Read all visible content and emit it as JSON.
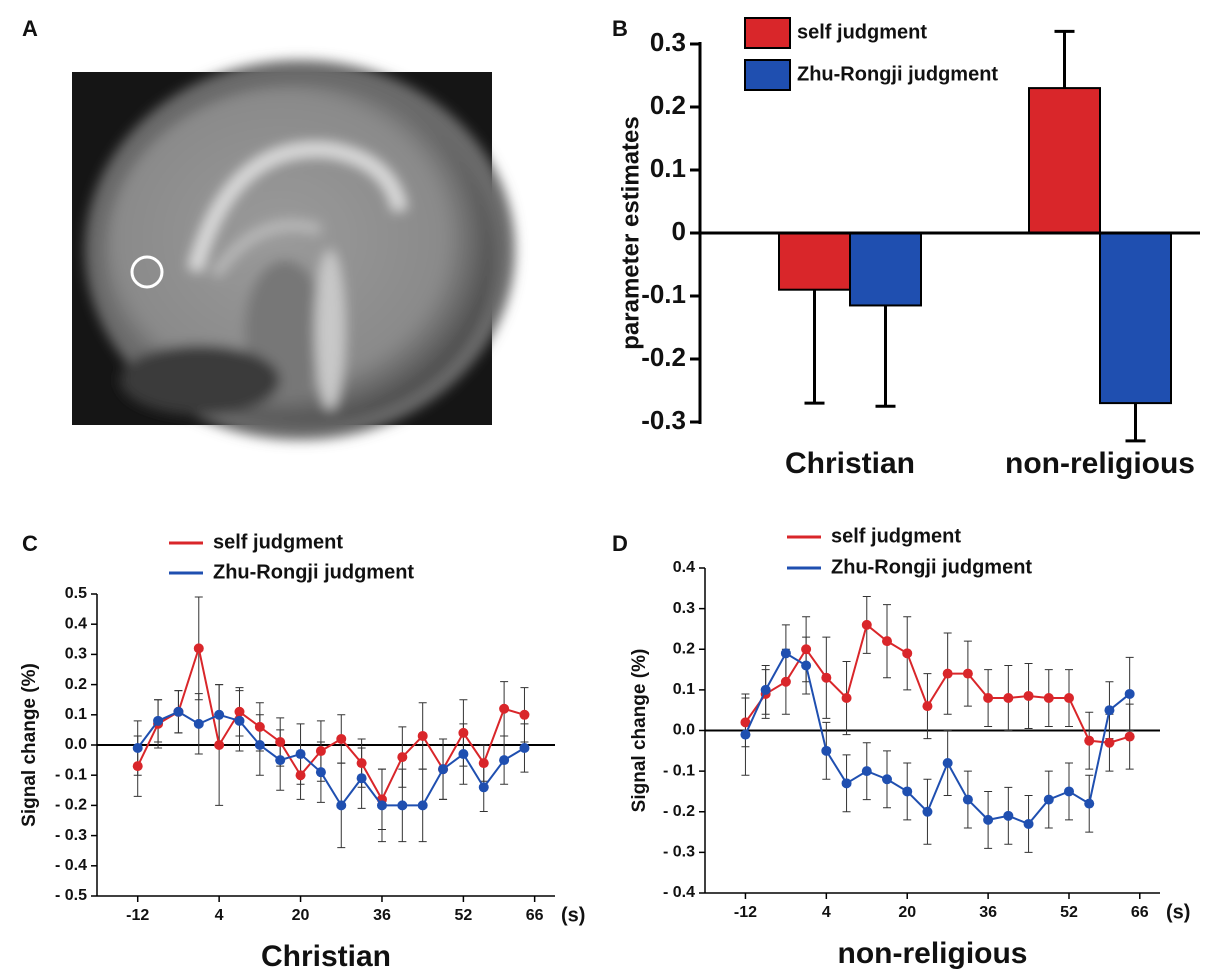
{
  "panel_labels": [
    "A",
    "B",
    "C",
    "D"
  ],
  "chart_data": [
    {
      "type": "bar",
      "ylabel": "parameter estimates",
      "categories": [
        "Christian",
        "non-religious"
      ],
      "series": [
        {
          "name": "self judgment",
          "color": "#d9262a",
          "values": [
            -0.09,
            0.23
          ],
          "errors": [
            0.18,
            0.09
          ]
        },
        {
          "name": "Zhu-Rongji judgment",
          "color": "#1f4fb0",
          "values": [
            -0.115,
            -0.27
          ],
          "errors": [
            0.16,
            0.06
          ]
        }
      ],
      "ylim": [
        -0.3,
        0.3
      ],
      "yticks": [
        0.3,
        0.2,
        0.1,
        0,
        -0.1,
        -0.2,
        -0.3
      ]
    },
    {
      "type": "line",
      "ylabel": "Signal change (%)",
      "xlabel": "Christian",
      "xunit": "(s)",
      "x": [
        -12,
        -8,
        -4,
        0,
        4,
        8,
        12,
        16,
        20,
        24,
        28,
        32,
        36,
        40,
        44,
        48,
        52,
        56,
        60,
        64
      ],
      "series": [
        {
          "name": "self judgment",
          "color": "#d9262a",
          "values": [
            -0.07,
            0.07,
            0.11,
            0.32,
            0.0,
            0.11,
            0.06,
            0.01,
            -0.1,
            -0.02,
            0.02,
            -0.06,
            -0.18,
            -0.04,
            0.03,
            -0.08,
            0.04,
            -0.06,
            0.12,
            0.1
          ],
          "errors": [
            0.1,
            0.08,
            0.07,
            0.17,
            0.2,
            0.08,
            0.08,
            0.08,
            0.08,
            0.1,
            0.08,
            0.08,
            0.1,
            0.1,
            0.11,
            0.1,
            0.11,
            0.06,
            0.09,
            0.09
          ]
        },
        {
          "name": "Zhu-Rongji judgment",
          "color": "#1f4fb0",
          "values": [
            -0.01,
            0.08,
            0.11,
            0.07,
            0.1,
            0.08,
            0.0,
            -0.05,
            -0.03,
            -0.09,
            -0.2,
            -0.11,
            -0.2,
            -0.2,
            -0.2,
            -0.08,
            -0.03,
            -0.14,
            -0.05,
            -0.01
          ],
          "errors": [
            0.09,
            0.07,
            0.07,
            0.1,
            0.1,
            0.1,
            0.1,
            0.1,
            0.1,
            0.1,
            0.14,
            0.1,
            0.12,
            0.12,
            0.12,
            0.1,
            0.1,
            0.08,
            0.08,
            0.08
          ]
        }
      ],
      "xlim": [
        -20,
        70
      ],
      "xticks": [
        -12,
        4,
        20,
        36,
        52,
        66
      ],
      "ylim": [
        -0.5,
        0.5
      ],
      "yticks": [
        0.5,
        0.4,
        0.3,
        0.2,
        0.1,
        {
          "value": 0,
          "label": "0.0"
        },
        {
          "value": -0.1,
          "label": "- 0.1"
        },
        {
          "value": -0.2,
          "label": "- 0.2"
        },
        {
          "value": -0.3,
          "label": "- 0.3"
        },
        {
          "value": -0.4,
          "label": "- 0.4"
        },
        {
          "value": -0.5,
          "label": "- 0.5"
        }
      ]
    },
    {
      "type": "line",
      "ylabel": "Signal change (%)",
      "xlabel": "non-religious",
      "xunit": "(s)",
      "x": [
        -12,
        -8,
        -4,
        0,
        4,
        8,
        12,
        16,
        20,
        24,
        28,
        32,
        36,
        40,
        44,
        48,
        52,
        56,
        60,
        64
      ],
      "series": [
        {
          "name": "self judgment",
          "color": "#d9262a",
          "values": [
            0.02,
            0.09,
            0.12,
            0.2,
            0.13,
            0.08,
            0.26,
            0.22,
            0.19,
            0.06,
            0.14,
            0.14,
            0.08,
            0.08,
            0.085,
            0.08,
            0.08,
            -0.025,
            -0.03,
            -0.015
          ],
          "errors": [
            0.06,
            0.06,
            0.08,
            0.08,
            0.1,
            0.09,
            0.07,
            0.09,
            0.09,
            0.08,
            0.1,
            0.08,
            0.07,
            0.08,
            0.08,
            0.07,
            0.07,
            0.07,
            0.07,
            0.08
          ]
        },
        {
          "name": "Zhu-Rongji judgment",
          "color": "#1f4fb0",
          "values": [
            -0.01,
            0.1,
            0.19,
            0.16,
            -0.05,
            -0.13,
            -0.1,
            -0.12,
            -0.15,
            -0.2,
            -0.08,
            -0.17,
            -0.22,
            -0.21,
            -0.23,
            -0.17,
            -0.15,
            -0.18,
            0.05,
            0.09
          ],
          "errors": [
            0.1,
            0.06,
            0.07,
            0.07,
            0.07,
            0.07,
            0.07,
            0.07,
            0.07,
            0.08,
            0.08,
            0.07,
            0.07,
            0.07,
            0.07,
            0.07,
            0.07,
            0.07,
            0.07,
            0.09
          ]
        }
      ],
      "xlim": [
        -20,
        70
      ],
      "xticks": [
        -12,
        4,
        20,
        36,
        52,
        66
      ],
      "ylim": [
        -0.4,
        0.4
      ],
      "yticks": [
        0.4,
        0.3,
        0.2,
        0.1,
        {
          "value": 0,
          "label": "0.0"
        },
        {
          "value": -0.1,
          "label": "- 0.1"
        },
        {
          "value": -0.2,
          "label": "- 0.2"
        },
        {
          "value": -0.3,
          "label": "- 0.3"
        },
        {
          "value": -0.4,
          "label": "- 0.4"
        }
      ]
    }
  ]
}
